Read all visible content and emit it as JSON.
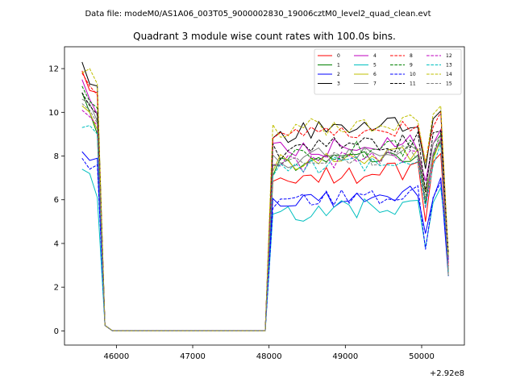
{
  "suptitle": "Data file: modeM0/AS1A06_003T05_9000002830_19006cztM0_level2_quad_clean.evt",
  "chart_data": {
    "type": "line",
    "title": "Quadrant 3 module wise count rates with 100.0s bins.",
    "xlabel": "",
    "ylabel": "",
    "x_offset_label": "+2.92e8",
    "xlim": [
      45320,
      50560
    ],
    "ylim": [
      -0.65,
      13.0
    ],
    "xticks": [
      46000,
      47000,
      48000,
      49000,
      50000
    ],
    "xtick_labels": [
      "46000",
      "47000",
      "48000",
      "49000",
      "50000"
    ],
    "yticks": [
      0,
      2,
      4,
      6,
      8,
      10,
      12
    ],
    "ytick_labels": [
      "0",
      "2",
      "4",
      "6",
      "8",
      "10",
      "12"
    ],
    "grid": false,
    "legend_placement": "top-right",
    "series": [
      {
        "name": "0",
        "color": "#ff0000",
        "dash": "solid",
        "base": 7.3
      },
      {
        "name": "1",
        "color": "#008000",
        "dash": "solid",
        "base": 7.9
      },
      {
        "name": "2",
        "color": "#0000ff",
        "dash": "solid",
        "base": 6.3
      },
      {
        "name": "3",
        "color": "#000000",
        "dash": "solid",
        "base": 9.4
      },
      {
        "name": "4",
        "color": "#bf00bf",
        "dash": "solid",
        "base": 8.6
      },
      {
        "name": "5",
        "color": "#00bfbf",
        "dash": "solid",
        "base": 5.7
      },
      {
        "name": "6",
        "color": "#bfbf00",
        "dash": "solid",
        "base": 8.0
      },
      {
        "name": "7",
        "color": "#808080",
        "dash": "solid",
        "base": 8.2
      },
      {
        "name": "8",
        "color": "#ff0000",
        "dash": "dashed",
        "base": 9.3
      },
      {
        "name": "9",
        "color": "#008000",
        "dash": "dashed",
        "base": 8.4
      },
      {
        "name": "10",
        "color": "#0000ff",
        "dash": "dashed",
        "base": 6.2
      },
      {
        "name": "11",
        "color": "#000000",
        "dash": "dashed",
        "base": 8.6
      },
      {
        "name": "12",
        "color": "#bf00bf",
        "dash": "dashed",
        "base": 8.0
      },
      {
        "name": "13",
        "color": "#00bfbf",
        "dash": "dashed",
        "base": 7.8
      },
      {
        "name": "14",
        "color": "#bfbf00",
        "dash": "dashed",
        "base": 9.6
      },
      {
        "name": "15",
        "color": "#808080",
        "dash": "dashed",
        "base": 8.1
      }
    ],
    "x": [
      45550,
      45650,
      45750,
      45850,
      45950,
      46050,
      46150,
      46250,
      46350,
      46450,
      46550,
      46650,
      46750,
      46850,
      46950,
      47050,
      47150,
      47250,
      47350,
      47450,
      47550,
      47650,
      47750,
      47850,
      47950,
      48050,
      48150,
      48250,
      48350,
      48450,
      48550,
      48650,
      48750,
      48850,
      48950,
      49050,
      49150,
      49250,
      49350,
      49450,
      49550,
      49650,
      49750,
      49850,
      49950,
      50050,
      50150,
      50250,
      50350
    ],
    "start_values": [
      [
        11.9,
        11.0,
        10.9
      ],
      [
        10.9,
        10.0,
        9.0
      ],
      [
        8.2,
        7.8,
        7.9
      ],
      [
        12.3,
        11.3,
        11.2
      ],
      [
        11.5,
        10.6,
        9.9
      ],
      [
        7.4,
        7.2,
        6.1
      ],
      [
        10.3,
        10.0,
        9.2
      ],
      [
        10.6,
        10.4,
        9.6
      ],
      [
        11.8,
        11.2,
        10.8
      ],
      [
        11.2,
        10.5,
        10.2
      ],
      [
        7.9,
        7.4,
        7.6
      ],
      [
        10.9,
        10.3,
        9.9
      ],
      [
        10.1,
        9.8,
        9.4
      ],
      [
        9.3,
        9.4,
        9.0
      ],
      [
        11.8,
        12.0,
        11.3
      ],
      [
        10.4,
        10.1,
        9.5
      ]
    ]
  }
}
